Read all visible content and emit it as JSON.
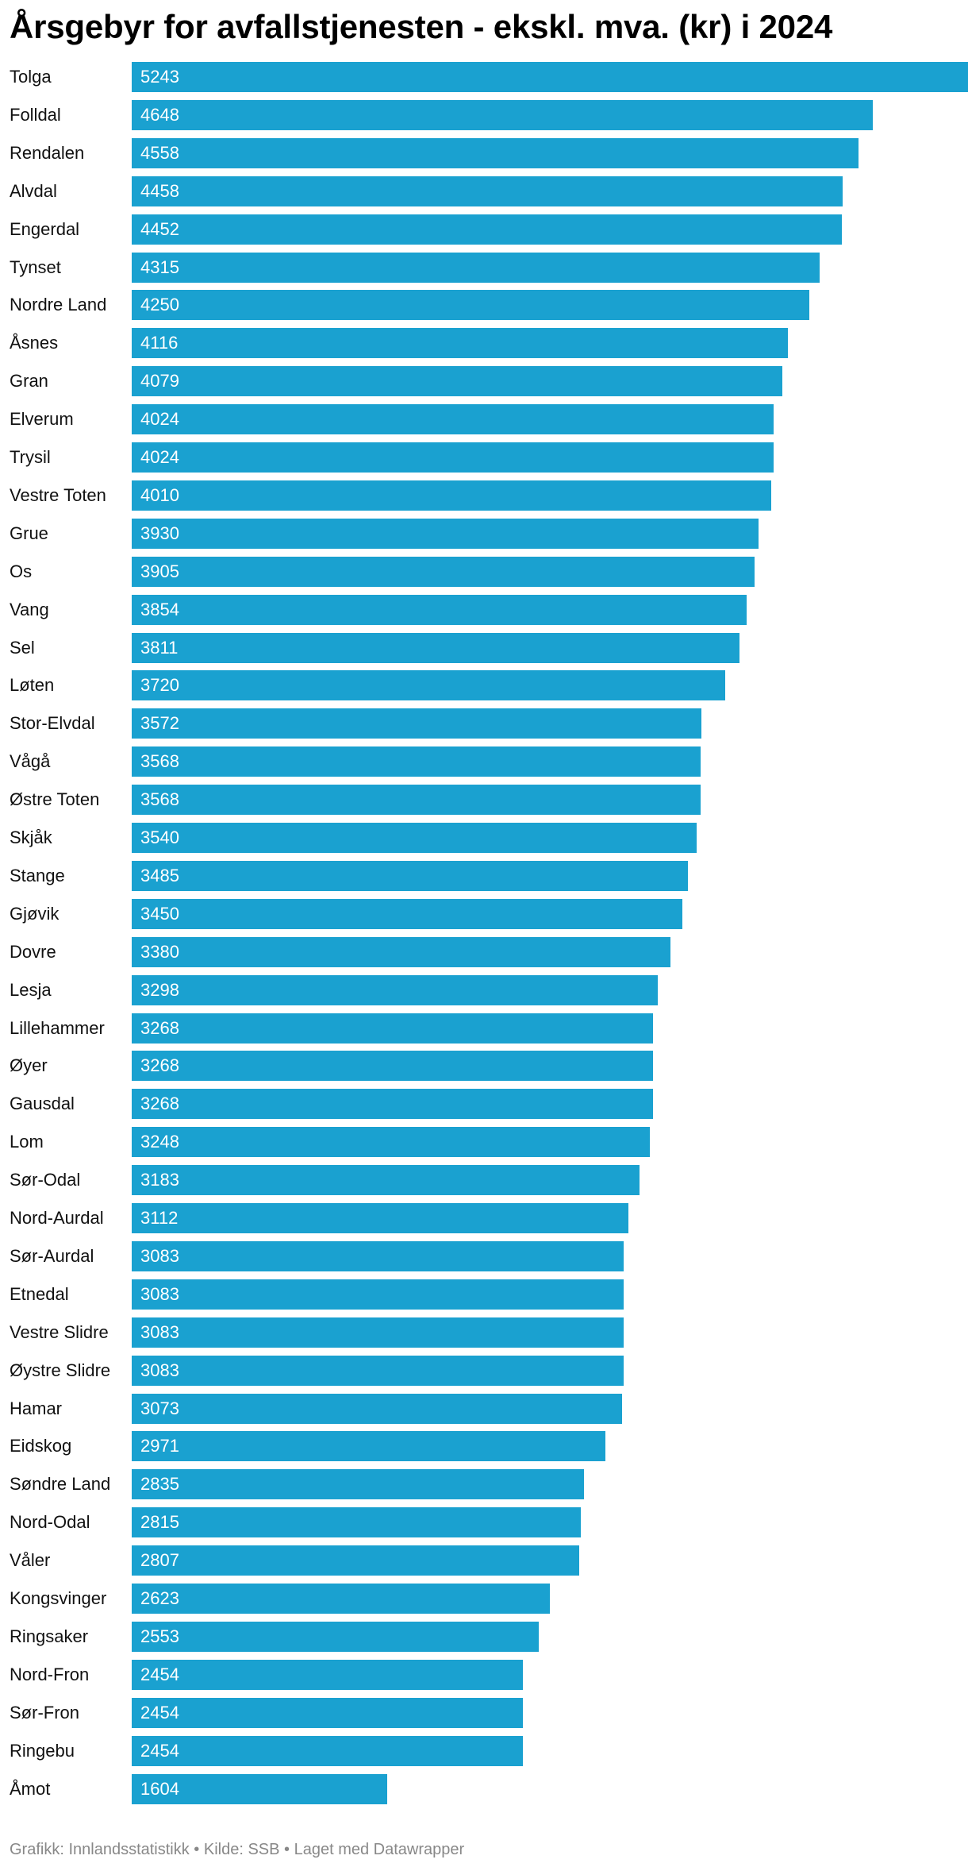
{
  "chart_data": {
    "type": "bar",
    "orientation": "horizontal",
    "title": "Årsgebyr for avfallstjenesten - ekskl. mva. (kr) i 2024",
    "xlabel": "",
    "ylabel": "",
    "xlim": [
      0,
      5243
    ],
    "grid": false,
    "bar_color": "#1aa1d0",
    "categories": [
      "Tolga",
      "Folldal",
      "Rendalen",
      "Alvdal",
      "Engerdal",
      "Tynset",
      "Nordre Land",
      "Åsnes",
      "Gran",
      "Elverum",
      "Trysil",
      "Vestre Toten",
      "Grue",
      "Os",
      "Vang",
      "Sel",
      "Løten",
      "Stor-Elvdal",
      "Vågå",
      "Østre Toten",
      "Skjåk",
      "Stange",
      "Gjøvik",
      "Dovre",
      "Lesja",
      "Lillehammer",
      "Øyer",
      "Gausdal",
      "Lom",
      "Sør-Odal",
      "Nord-Aurdal",
      "Sør-Aurdal",
      "Etnedal",
      "Vestre Slidre",
      "Øystre Slidre",
      "Hamar",
      "Eidskog",
      "Søndre Land",
      "Nord-Odal",
      "Våler",
      "Kongsvinger",
      "Ringsaker",
      "Nord-Fron",
      "Sør-Fron",
      "Ringebu",
      "Åmot"
    ],
    "values": [
      5243,
      4648,
      4558,
      4458,
      4452,
      4315,
      4250,
      4116,
      4079,
      4024,
      4024,
      4010,
      3930,
      3905,
      3854,
      3811,
      3720,
      3572,
      3568,
      3568,
      3540,
      3485,
      3450,
      3380,
      3298,
      3268,
      3268,
      3268,
      3248,
      3183,
      3112,
      3083,
      3083,
      3083,
      3083,
      3073,
      2971,
      2835,
      2815,
      2807,
      2623,
      2553,
      2454,
      2454,
      2454,
      1604
    ]
  },
  "footer": {
    "graphic": "Grafikk: Innlandsstatistikk",
    "source": "Kilde: SSB",
    "made_with": "Laget med Datawrapper",
    "separator": " • "
  }
}
